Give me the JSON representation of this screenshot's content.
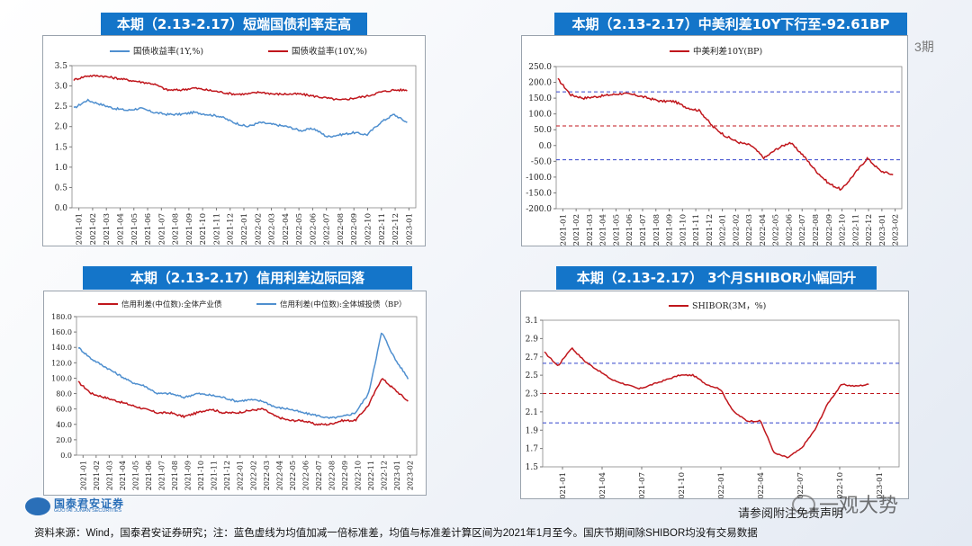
{
  "panels": {
    "p1": {
      "title": "本期（2.13-2.17）短端国债利率走高"
    },
    "p2": {
      "title": "本期（2.13-2.17）中美利差10Y下行至-92.61BP"
    },
    "p3": {
      "title": "本期（2.13-2.17）信用利差边际回落"
    },
    "p4": {
      "title": "本期（2.13-2.17）  3个月SHIBOR小幅回升"
    }
  },
  "footer": {
    "source": "资料来源：Wind，国泰君安证券研究；注：蓝色虚线为均值加减一倍标准差，均值与标准差计算区间为2021年1月至今。国庆节期间除SHIBOR均没有交易数据"
  },
  "logo": {
    "cn": "国泰君安证券",
    "en": "GUOTAI JUNAN SECURITIES"
  },
  "disclaimer": "请参阅附注免责声明",
  "watermark": "一观大势",
  "edge_text": "3期",
  "colors": {
    "red": "#c0161c",
    "blue": "#4f8fcf",
    "dash_blue": "#3344cc",
    "dash_red": "#c0161c",
    "title_bg": "#1475c9"
  },
  "chart_data": [
    {
      "type": "line",
      "legend": [
        "国债收益率(1Y,%)",
        "国债收益率(10Y,%)"
      ],
      "x_ticks": [
        "2021-01",
        "2021-02",
        "2021-03",
        "2021-04",
        "2021-05",
        "2021-06",
        "2021-07",
        "2021-08",
        "2021-09",
        "2021-10",
        "2021-11",
        "2021-12",
        "2022-01",
        "2022-02",
        "2022-03",
        "2022-04",
        "2022-05",
        "2022-06",
        "2022-07",
        "2022-08",
        "2022-09",
        "2022-10",
        "2022-11",
        "2022-12",
        "2023-01"
      ],
      "y_ticks": [
        "0.0",
        "0.5",
        "1.0",
        "1.5",
        "2.0",
        "2.5",
        "3.0",
        "3.5"
      ],
      "ylim": [
        0,
        3.5
      ],
      "series": [
        {
          "name": "国债收益率(1Y,%)",
          "color": "#4f8fcf",
          "values": [
            2.45,
            2.65,
            2.55,
            2.45,
            2.4,
            2.45,
            2.35,
            2.3,
            2.3,
            2.35,
            2.3,
            2.25,
            2.1,
            2.0,
            2.1,
            2.05,
            2.0,
            1.9,
            1.95,
            1.75,
            1.8,
            1.85,
            1.8,
            2.1,
            2.3,
            2.1
          ]
        },
        {
          "name": "国债收益率(10Y,%)",
          "color": "#c0161c",
          "values": [
            3.15,
            3.25,
            3.25,
            3.2,
            3.15,
            3.1,
            3.05,
            2.9,
            2.9,
            2.95,
            2.9,
            2.85,
            2.8,
            2.8,
            2.85,
            2.8,
            2.8,
            2.8,
            2.75,
            2.7,
            2.65,
            2.7,
            2.75,
            2.85,
            2.9,
            2.9
          ]
        }
      ]
    },
    {
      "type": "line",
      "legend": [
        "中美利差10Y(BP)"
      ],
      "x_ticks": [
        "2021-01",
        "2021-02",
        "2021-03",
        "2021-04",
        "2021-05",
        "2021-06",
        "2021-07",
        "2021-08",
        "2021-09",
        "2021-10",
        "2021-11",
        "2021-12",
        "2022-01",
        "2022-02",
        "2022-03",
        "2022-04",
        "2022-05",
        "2022-06",
        "2022-07",
        "2022-08",
        "2022-09",
        "2022-10",
        "2022-11",
        "2022-12",
        "2023-01",
        "2023-02"
      ],
      "y_ticks": [
        "250.0",
        "200.0",
        "150.0",
        "100.0",
        "50.0",
        "0.0",
        "-50.0",
        "-100.0",
        "-150.0",
        "-200.0"
      ],
      "ylim": [
        -200,
        250
      ],
      "ref_lines": {
        "upper": 170,
        "mean": 62,
        "lower": -45
      },
      "series": [
        {
          "name": "中美利差10Y(BP)",
          "color": "#c0161c",
          "values": [
            210,
            160,
            150,
            155,
            160,
            165,
            160,
            150,
            140,
            140,
            120,
            110,
            60,
            30,
            10,
            0,
            -40,
            -10,
            10,
            -30,
            -80,
            -120,
            -140,
            -90,
            -40,
            -80,
            -92.61
          ]
        }
      ]
    },
    {
      "type": "line",
      "legend": [
        "信用利差(中位数):全体产业债",
        "信用利差(中位数):全体城投债（BP）"
      ],
      "x_ticks": [
        "2021-01",
        "2021-02",
        "2021-03",
        "2021-04",
        "2021-05",
        "2021-06",
        "2021-07",
        "2021-08",
        "2021-09",
        "2021-10",
        "2021-11",
        "2021-12",
        "2022-01",
        "2022-02",
        "2022-03",
        "2022-04",
        "2022-05",
        "2022-06",
        "2022-07",
        "2022-08",
        "2022-09",
        "2022-10",
        "2022-11",
        "2022-12",
        "2023-01",
        "2023-02"
      ],
      "y_ticks": [
        "180.0",
        "160.0",
        "140.0",
        "120.0",
        "100.0",
        "80.0",
        "60.0",
        "40.0",
        "20.0",
        "0.0"
      ],
      "ylim": [
        0,
        180
      ],
      "series": [
        {
          "name": "信用利差(中位数):全体产业债",
          "color": "#c0161c",
          "values": [
            95,
            80,
            75,
            70,
            65,
            60,
            55,
            55,
            50,
            55,
            60,
            55,
            55,
            58,
            60,
            50,
            45,
            45,
            40,
            40,
            45,
            45,
            65,
            100,
            85,
            70
          ]
        },
        {
          "name": "信用利差(中位数):全体城投债（BP）",
          "color": "#4f8fcf",
          "values": [
            140,
            125,
            115,
            105,
            95,
            90,
            80,
            80,
            75,
            80,
            78,
            75,
            70,
            72,
            70,
            62,
            60,
            55,
            52,
            48,
            50,
            55,
            80,
            160,
            125,
            100
          ]
        }
      ]
    },
    {
      "type": "line",
      "legend": [
        "SHIBOR(3M，%)"
      ],
      "x_ticks": [
        "2021-01",
        "2021-04",
        "2021-07",
        "2021-10",
        "2022-01",
        "2022-04",
        "2022-07",
        "2022-10",
        "2023-01"
      ],
      "y_ticks": [
        "3.1",
        "2.9",
        "2.7",
        "2.5",
        "2.3",
        "2.1",
        "1.9",
        "1.7",
        "1.5"
      ],
      "ylim": [
        1.5,
        3.1
      ],
      "ref_lines": {
        "upper": 2.63,
        "mean": 2.3,
        "lower": 1.98
      },
      "series": [
        {
          "name": "SHIBOR(3M，%)",
          "color": "#c0161c",
          "values": [
            2.75,
            2.6,
            2.8,
            2.65,
            2.55,
            2.45,
            2.4,
            2.35,
            2.4,
            2.45,
            2.5,
            2.5,
            2.4,
            2.35,
            2.1,
            2.0,
            2.0,
            1.65,
            1.6,
            1.7,
            1.9,
            2.2,
            2.4,
            2.38,
            2.4
          ]
        }
      ]
    }
  ]
}
